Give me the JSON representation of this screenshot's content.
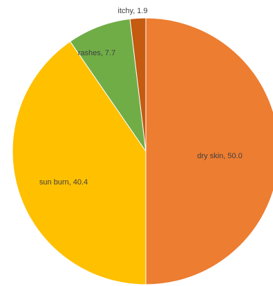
{
  "chart_data": {
    "type": "pie",
    "title": "",
    "categories": [
      "dry skin",
      "sun burn",
      "rashes",
      "itchy"
    ],
    "values": [
      50.0,
      40.4,
      7.7,
      1.9
    ],
    "data_labels": [
      "dry skin, 50.0",
      "sun burn, 40.4",
      "rashes, 7.7",
      "itchy, 1.9"
    ],
    "colors": [
      "#ED7D31",
      "#FFC000",
      "#70AD47",
      "#C55A11"
    ],
    "start_angle_deg": 0,
    "direction": "clockwise",
    "legend": "none"
  }
}
